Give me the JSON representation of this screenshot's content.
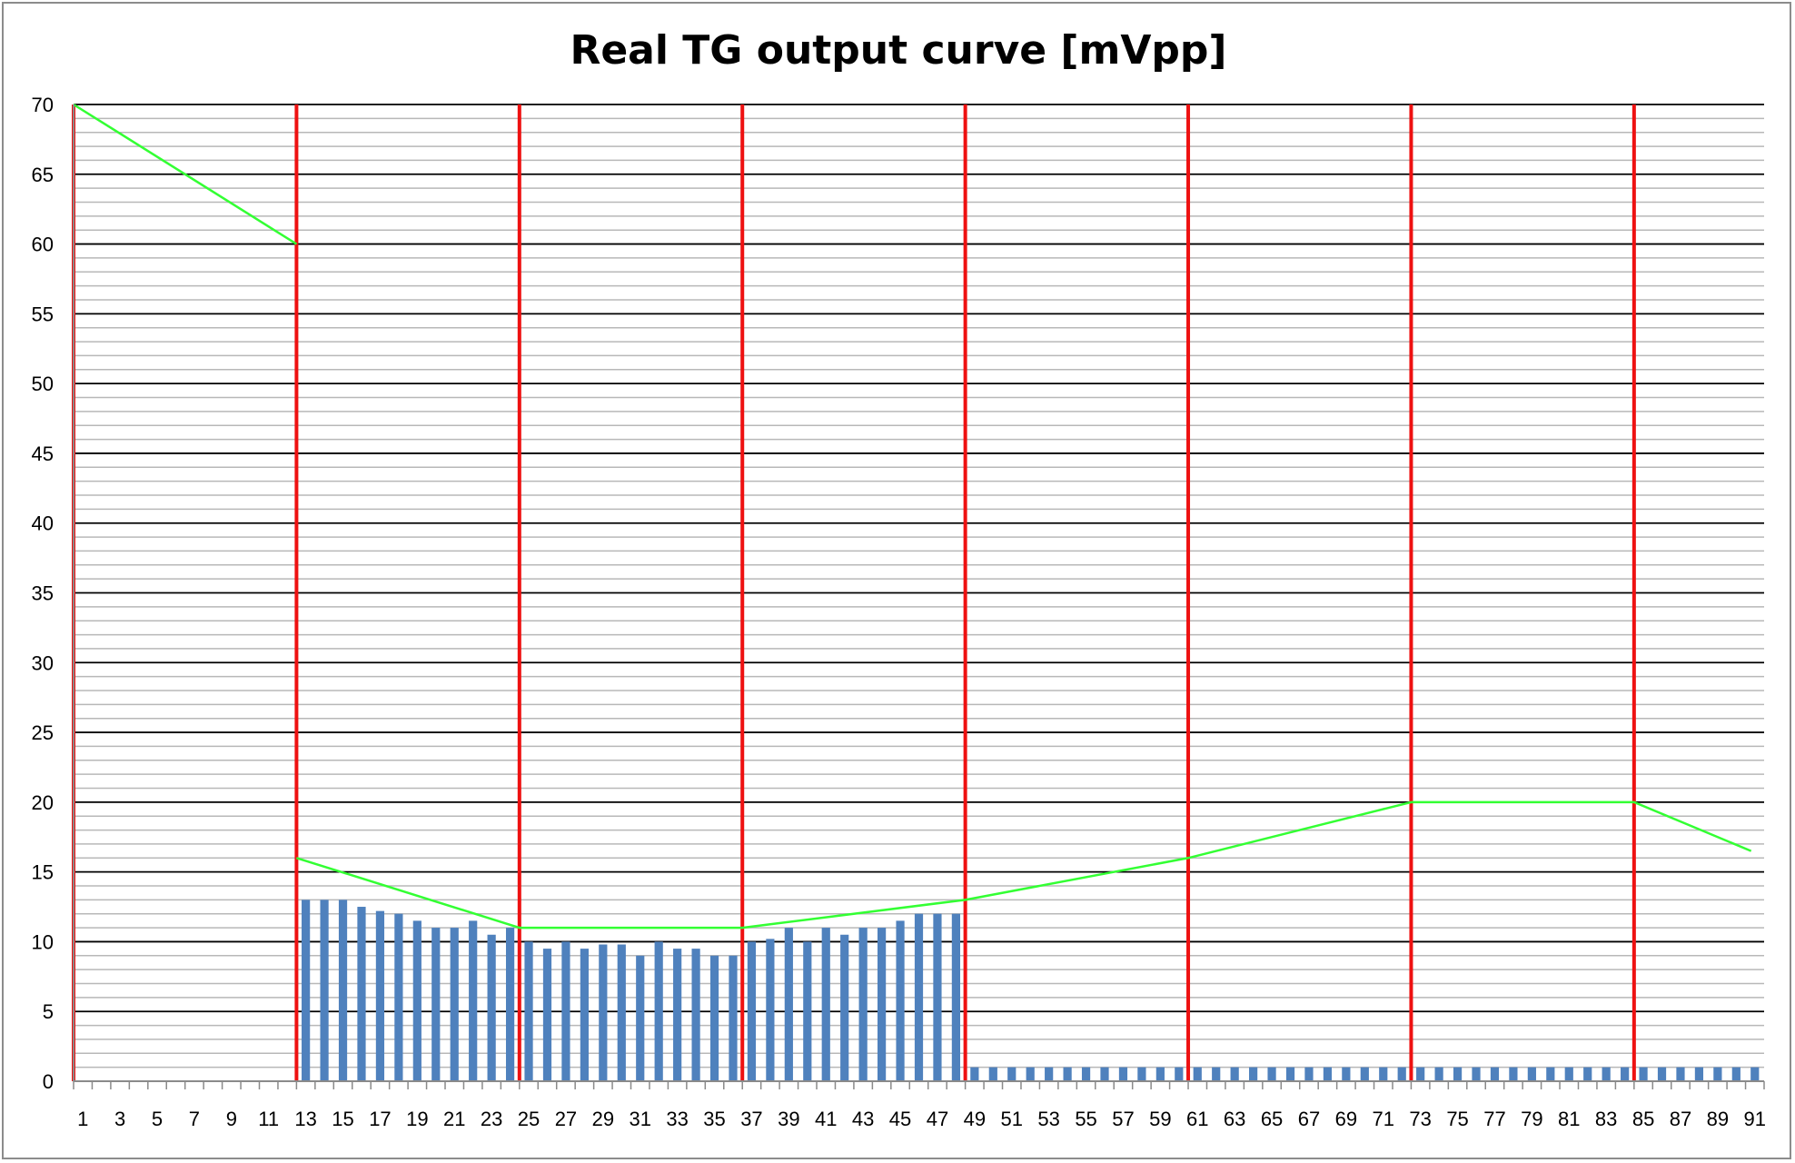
{
  "chart_data": {
    "type": "bar",
    "title": "Real TG output curve [mVpp]",
    "xlabel": "",
    "ylabel": "",
    "ylim": [
      0,
      70
    ],
    "y_ticks": [
      0,
      5,
      10,
      15,
      20,
      25,
      30,
      35,
      40,
      45,
      50,
      55,
      60,
      65,
      70
    ],
    "y_minor_step": 1,
    "grid": true,
    "x_categories_count": 91,
    "x_tick_labels": [
      "1",
      "3",
      "5",
      "7",
      "9",
      "11",
      "13",
      "15",
      "17",
      "19",
      "21",
      "23",
      "25",
      "27",
      "29",
      "31",
      "33",
      "35",
      "37",
      "39",
      "41",
      "43",
      "45",
      "47",
      "49",
      "51",
      "53",
      "55",
      "57",
      "59",
      "61",
      "63",
      "65",
      "67",
      "69",
      "71",
      "73",
      "75",
      "77",
      "79",
      "81",
      "83",
      "85",
      "87",
      "89",
      "91"
    ],
    "bar_series": {
      "color": "#4f81bd",
      "values": [
        0,
        0,
        0,
        0,
        0,
        0,
        0,
        0,
        0,
        0,
        0,
        0,
        13,
        13,
        13,
        12.5,
        12.2,
        12,
        11.5,
        11,
        11,
        11.5,
        10.5,
        11,
        10,
        9.5,
        10,
        9.5,
        9.8,
        9.8,
        9,
        10,
        9.5,
        9.5,
        9,
        9,
        10,
        10.2,
        11,
        10,
        11,
        10.5,
        11,
        11,
        11.5,
        12,
        12,
        12,
        1,
        1,
        1,
        1,
        1,
        1,
        1,
        1,
        1,
        1,
        1,
        1,
        1,
        1,
        1,
        1,
        1,
        1,
        1,
        1,
        1,
        1,
        1,
        1,
        1,
        1,
        1,
        1,
        1,
        1,
        1,
        1,
        1,
        1,
        1,
        1,
        1,
        1,
        1,
        1,
        1,
        1,
        1
      ]
    },
    "line_segments": {
      "color": "#33ff33",
      "segments": [
        [
          [
            1,
            70
          ],
          [
            13,
            60
          ]
        ],
        [
          [
            13,
            16
          ],
          [
            25,
            11
          ],
          [
            37,
            11
          ],
          [
            49,
            13
          ],
          [
            61,
            16
          ],
          [
            73,
            20
          ],
          [
            85,
            20
          ],
          [
            91.3,
            16.5
          ]
        ]
      ]
    },
    "vertical_markers": {
      "color": "#ee1111",
      "positions": [
        1,
        13,
        25,
        37,
        49,
        61,
        73,
        85
      ]
    }
  }
}
